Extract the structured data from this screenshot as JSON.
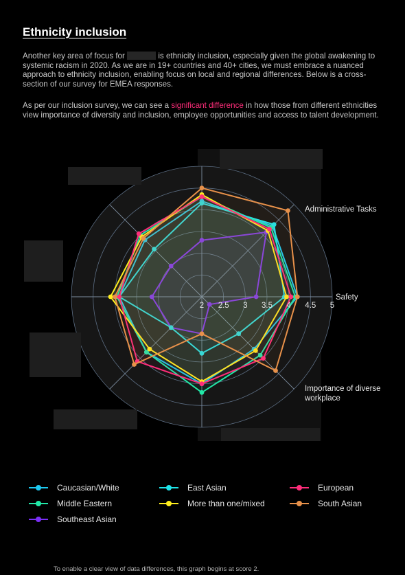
{
  "page": {
    "title": "Ethnicity inclusion",
    "para1_before": "Another key area of focus for",
    "para1_after": "is ethnicity inclusion, especially given the global awakening to systemic racism in 2020. As we are in 19+ countries and 40+ cities, we must embrace a nuanced approach to ethnicity inclusion, enabling focus on local and regional differences. Below is a cross-section of our survey for EMEA responses.",
    "para2_before": "As per our inclusion survey, we can see a",
    "para2_highlight": "significant difference",
    "para2_after": "in how those from different ethnicities view importance of diversity and inclusion, employee opportunities and access to talent development.",
    "footnote": "To enable a clear view of data differences, this graph begins at score 2."
  },
  "colors": {
    "background": "#000000",
    "highlight": "#ff2d7a",
    "grid": "#5d6f85"
  },
  "chart_data": {
    "type": "radar",
    "rlim": [
      2,
      5
    ],
    "rticks": [
      "2",
      "2.5",
      "3",
      "3.5",
      "4",
      "4.5",
      "5"
    ],
    "axes": [
      "Safety",
      "Importance of diverse workplace",
      "",
      "",
      "",
      "",
      "",
      "Administrative Tasks"
    ],
    "series": [
      {
        "name": "Caucasian/White",
        "color": "#1ec8f0",
        "values": [
          4.2,
          4.3,
          4.2,
          3.85,
          3.9,
          3.8,
          4.0,
          3.7
        ]
      },
      {
        "name": "Middle Eastern",
        "color": "#22e8a8",
        "values": [
          4.15,
          4.25,
          4.3,
          4.0,
          3.95,
          3.8,
          4.2,
          3.9
        ]
      },
      {
        "name": "Southeast Asian",
        "color": "#7b2ff7",
        "values": [
          3.25,
          4.1,
          3.3,
          3.0,
          3.15,
          3.0,
          2.85,
          2.25
        ]
      },
      {
        "name": "East Asian",
        "color": "#1fe3e8",
        "values": [
          3.9,
          4.35,
          4.15,
          3.55,
          3.9,
          3.0,
          3.3,
          3.2
        ]
      },
      {
        "name": "More than one/mixed",
        "color": "#ffee1e",
        "values": [
          3.95,
          4.15,
          4.35,
          3.95,
          4.1,
          3.7,
          3.95,
          3.75
        ]
      },
      {
        "name": "European",
        "color": "#ff2d7a",
        "values": [
          4.05,
          4.2,
          4.3,
          4.05,
          3.9,
          4.1,
          4.0,
          4.0
        ]
      },
      {
        "name": "South Asian",
        "color": "#e8914a",
        "values": [
          4.2,
          4.8,
          4.5,
          3.9,
          4.0,
          4.2,
          2.85,
          4.4
        ]
      }
    ]
  },
  "legend": [
    {
      "label": "Caucasian/White",
      "color": "#1ec8f0"
    },
    {
      "label": "East Asian",
      "color": "#1fe3e8"
    },
    {
      "label": "European",
      "color": "#ff2d7a"
    },
    {
      "label": "Middle Eastern",
      "color": "#22e8a8"
    },
    {
      "label": "More than one/mixed",
      "color": "#ffee1e"
    },
    {
      "label": "South Asian",
      "color": "#e8914a"
    },
    {
      "label": "Southeast Asian",
      "color": "#7b2ff7"
    }
  ]
}
